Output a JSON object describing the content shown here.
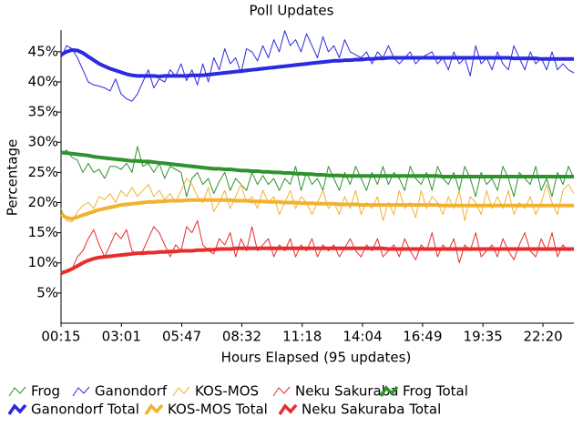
{
  "chart_data": {
    "type": "line",
    "title": "Poll Updates",
    "x_label": "Hours Elapsed (95 updates)",
    "y_label": "Percentage",
    "x": [
      15,
      30,
      45,
      60,
      75,
      90,
      105,
      120,
      135,
      150,
      165,
      180,
      195,
      210,
      225,
      240,
      255,
      270,
      285,
      300,
      315,
      330,
      345,
      360,
      375,
      390,
      405,
      420,
      435,
      450,
      465,
      480,
      495,
      510,
      525,
      540,
      555,
      570,
      585,
      600,
      615,
      630,
      645,
      660,
      675,
      690,
      705,
      720,
      735,
      750,
      765,
      780,
      795,
      810,
      825,
      840,
      855,
      870,
      885,
      900,
      915,
      930,
      945,
      960,
      975,
      990,
      1005,
      1020,
      1035,
      1050,
      1065,
      1080,
      1095,
      1110,
      1125,
      1140,
      1155,
      1170,
      1185,
      1200,
      1215,
      1230,
      1245,
      1260,
      1275,
      1290,
      1305,
      1320,
      1335,
      1350,
      1365,
      1380,
      1395,
      1410,
      1425
    ],
    "xlim": [
      15,
      1425
    ],
    "xticks": [
      {
        "value": 15,
        "label": "00:15"
      },
      {
        "value": 181,
        "label": "03:01"
      },
      {
        "value": 347,
        "label": "05:47"
      },
      {
        "value": 512,
        "label": "08:32"
      },
      {
        "value": 678,
        "label": "11:18"
      },
      {
        "value": 844,
        "label": "14:04"
      },
      {
        "value": 1009,
        "label": "16:49"
      },
      {
        "value": 1175,
        "label": "19:35"
      },
      {
        "value": 1340,
        "label": "22:20"
      }
    ],
    "ylim": [
      0,
      48.6
    ],
    "yticks": [
      {
        "value": 5,
        "label": "5%"
      },
      {
        "value": 10,
        "label": "10%"
      },
      {
        "value": 15,
        "label": "15%"
      },
      {
        "value": 20,
        "label": "20%"
      },
      {
        "value": 25,
        "label": "25%"
      },
      {
        "value": 30,
        "label": "30%"
      },
      {
        "value": 35,
        "label": "35%"
      },
      {
        "value": 40,
        "label": "40%"
      },
      {
        "value": 45,
        "label": "45%"
      }
    ],
    "grid": false,
    "legend": "bottom",
    "series": [
      {
        "name": "Frog",
        "color": "#2e922e",
        "line_width": 1,
        "values": [
          28,
          28.7,
          27.5,
          27,
          25,
          26.5,
          25,
          25.5,
          24,
          26,
          26,
          25.5,
          26.5,
          25,
          29.3,
          26,
          26.5,
          25,
          26.5,
          24,
          26,
          25.5,
          25,
          21,
          24,
          25,
          23,
          24,
          21.5,
          23.5,
          25,
          22,
          24,
          23,
          22,
          25,
          23,
          24.5,
          23,
          24,
          22,
          24,
          23,
          26,
          22,
          25,
          23,
          24,
          22,
          26,
          24,
          22,
          25,
          23,
          26,
          24,
          22,
          25,
          23,
          26,
          23,
          25,
          24,
          22,
          26,
          24,
          23,
          25,
          22,
          26,
          24,
          23,
          25,
          22,
          26,
          24,
          21,
          25,
          23,
          24,
          22,
          26,
          24,
          21,
          25,
          24,
          23,
          26,
          22,
          24,
          21,
          25,
          23,
          26,
          24
        ]
      },
      {
        "name": "Ganondorf",
        "color": "#2a2ae0",
        "line_width": 1,
        "values": [
          44,
          46,
          45.5,
          44,
          42,
          40,
          39.5,
          39.3,
          39,
          38.5,
          40.5,
          38,
          37.2,
          36.8,
          38,
          40,
          42,
          39,
          40.5,
          40,
          42,
          41,
          43,
          40.2,
          42,
          39.5,
          43,
          40,
          44,
          42,
          45.5,
          43,
          44,
          41.5,
          45.5,
          45,
          43.5,
          46,
          44,
          47,
          45,
          48.5,
          46,
          47,
          45,
          48,
          46,
          44,
          47.5,
          45,
          46,
          44,
          47,
          45,
          44.5,
          44,
          45,
          43,
          45,
          44,
          46,
          44,
          43,
          44,
          45,
          43,
          44,
          44.5,
          45,
          43,
          44,
          42,
          45,
          43,
          44,
          41,
          46,
          43,
          44,
          42,
          45,
          43,
          42,
          46,
          44,
          42,
          45,
          43,
          44,
          42,
          45,
          42,
          43,
          42,
          41.5
        ]
      },
      {
        "name": "KOS-MOS",
        "color": "#f2b230",
        "line_width": 1,
        "values": [
          19,
          17,
          16.8,
          18.5,
          19.5,
          20,
          19,
          21,
          20.5,
          21.5,
          20,
          22,
          21,
          22.5,
          21,
          22,
          23,
          21,
          22,
          20.5,
          21.5,
          20,
          22,
          24,
          23,
          21,
          20,
          22.5,
          18.5,
          20,
          22,
          19,
          21,
          23,
          20,
          21,
          19,
          22,
          20,
          21,
          18,
          20,
          22,
          19,
          21,
          20,
          18,
          20,
          22,
          19,
          20,
          18,
          21,
          19,
          22,
          18,
          20,
          19,
          21,
          17,
          20,
          18,
          22,
          19,
          20,
          17.5,
          22,
          19,
          21,
          20,
          18,
          21,
          19,
          22,
          17,
          21,
          20,
          18,
          22,
          19,
          21,
          19,
          22,
          18,
          20,
          19,
          21,
          18,
          20,
          23,
          20,
          18,
          22,
          23,
          21.5
        ]
      },
      {
        "name": "Neku Sakuraba",
        "color": "#e82c2c",
        "line_width": 1,
        "values": [
          8,
          8.5,
          9,
          11,
          12,
          14,
          15.5,
          13,
          11,
          13,
          15,
          14,
          15.5,
          12,
          11.5,
          12,
          14,
          16,
          15,
          13,
          11,
          13,
          12,
          16,
          15,
          17,
          13,
          12,
          11.5,
          14,
          13,
          15,
          11,
          14,
          12,
          16,
          12,
          13,
          14,
          11,
          13,
          12,
          14,
          11,
          13,
          12,
          14,
          11,
          13,
          12,
          13,
          11,
          12.5,
          14,
          12,
          11,
          13,
          12,
          14,
          11,
          12,
          13,
          11,
          14,
          12,
          10.5,
          13,
          12,
          15,
          11,
          13,
          12,
          14,
          10,
          13,
          12,
          15,
          11,
          12,
          13,
          11,
          14,
          12,
          10.5,
          13,
          15,
          12,
          11,
          14,
          12,
          15,
          11,
          13,
          12,
          12.5
        ]
      },
      {
        "name": "Frog Total",
        "color": "#2e922e",
        "line_width": 4,
        "values": [
          28.3,
          28.2,
          28.1,
          28,
          27.9,
          27.8,
          27.6,
          27.5,
          27.4,
          27.3,
          27.2,
          27.1,
          27,
          26.9,
          26.9,
          26.8,
          26.8,
          26.7,
          26.6,
          26.5,
          26.4,
          26.3,
          26.2,
          26.1,
          26,
          25.9,
          25.8,
          25.7,
          25.6,
          25.6,
          25.5,
          25.5,
          25.4,
          25.3,
          25.3,
          25.2,
          25.2,
          25.1,
          25.1,
          25,
          25,
          24.9,
          24.9,
          24.8,
          24.8,
          24.7,
          24.7,
          24.6,
          24.6,
          24.5,
          24.5,
          24.5,
          24.4,
          24.4,
          24.4,
          24.4,
          24.4,
          24.4,
          24.4,
          24.4,
          24.4,
          24.4,
          24.4,
          24.4,
          24.4,
          24.4,
          24.4,
          24.4,
          24.4,
          24.4,
          24.3,
          24.3,
          24.3,
          24.3,
          24.3,
          24.3,
          24.3,
          24.3,
          24.3,
          24.3,
          24.3,
          24.3,
          24.3,
          24.3,
          24.3,
          24.3,
          24.3,
          24.3,
          24.3,
          24.3,
          24.3,
          24.3,
          24.3,
          24.3,
          24.3
        ]
      },
      {
        "name": "Ganondorf Total",
        "color": "#2a2ae0",
        "line_width": 4,
        "values": [
          44.5,
          45,
          45.3,
          45.2,
          44.8,
          44.2,
          43.6,
          43,
          42.6,
          42.2,
          41.9,
          41.6,
          41.3,
          41.1,
          41,
          41,
          41,
          41,
          40.9,
          41,
          41,
          41,
          41,
          41,
          41.1,
          41.1,
          41.1,
          41.2,
          41.3,
          41.4,
          41.5,
          41.6,
          41.7,
          41.8,
          41.9,
          42,
          42.1,
          42.2,
          42.3,
          42.4,
          42.5,
          42.6,
          42.7,
          42.8,
          42.9,
          43,
          43.1,
          43.2,
          43.3,
          43.4,
          43.5,
          43.5,
          43.6,
          43.6,
          43.7,
          43.7,
          43.8,
          43.8,
          43.9,
          43.9,
          44,
          44,
          44,
          44,
          44,
          44,
          44,
          44,
          44,
          44,
          44,
          44,
          44,
          44,
          44,
          44,
          44,
          44,
          44,
          44,
          44,
          44,
          44,
          43.9,
          43.9,
          43.9,
          43.9,
          43.9,
          43.8,
          43.8,
          43.8,
          43.8,
          43.8,
          43.8,
          43.8
        ]
      },
      {
        "name": "KOS-MOS Total",
        "color": "#f2b230",
        "line_width": 4,
        "values": [
          18,
          17.5,
          17.3,
          17.6,
          17.9,
          18.2,
          18.5,
          18.8,
          19,
          19.2,
          19.4,
          19.6,
          19.7,
          19.8,
          19.9,
          20,
          20.1,
          20.1,
          20.2,
          20.2,
          20.3,
          20.3,
          20.3,
          20.4,
          20.4,
          20.4,
          20.4,
          20.4,
          20.4,
          20.4,
          20.4,
          20.4,
          20.3,
          20.3,
          20.3,
          20.2,
          20.2,
          20.2,
          20.1,
          20.1,
          20.1,
          20,
          20,
          20,
          19.9,
          19.9,
          19.9,
          19.8,
          19.8,
          19.8,
          19.8,
          19.7,
          19.7,
          19.7,
          19.7,
          19.6,
          19.6,
          19.6,
          19.6,
          19.6,
          19.6,
          19.6,
          19.6,
          19.6,
          19.6,
          19.6,
          19.6,
          19.6,
          19.6,
          19.6,
          19.5,
          19.5,
          19.5,
          19.5,
          19.5,
          19.5,
          19.5,
          19.5,
          19.5,
          19.5,
          19.5,
          19.5,
          19.5,
          19.5,
          19.5,
          19.5,
          19.5,
          19.5,
          19.5,
          19.5,
          19.5,
          19.5,
          19.5,
          19.5,
          19.5
        ]
      },
      {
        "name": "Neku Sakuraba Total",
        "color": "#e82c2c",
        "line_width": 4,
        "values": [
          8.3,
          8.6,
          9,
          9.5,
          10,
          10.4,
          10.7,
          10.9,
          11,
          11.1,
          11.2,
          11.3,
          11.4,
          11.5,
          11.6,
          11.6,
          11.7,
          11.7,
          11.8,
          11.8,
          11.9,
          11.9,
          12,
          12,
          12,
          12.1,
          12.1,
          12.2,
          12.2,
          12.3,
          12.3,
          12.3,
          12.4,
          12.4,
          12.4,
          12.4,
          12.4,
          12.4,
          12.4,
          12.4,
          12.4,
          12.4,
          12.4,
          12.4,
          12.4,
          12.4,
          12.4,
          12.4,
          12.4,
          12.4,
          12.4,
          12.4,
          12.4,
          12.4,
          12.4,
          12.4,
          12.4,
          12.4,
          12.4,
          12.4,
          12.3,
          12.3,
          12.3,
          12.3,
          12.3,
          12.3,
          12.3,
          12.3,
          12.3,
          12.3,
          12.3,
          12.3,
          12.3,
          12.3,
          12.3,
          12.3,
          12.3,
          12.3,
          12.3,
          12.3,
          12.3,
          12.3,
          12.3,
          12.3,
          12.3,
          12.3,
          12.3,
          12.3,
          12.3,
          12.3,
          12.3,
          12.3,
          12.3,
          12.3,
          12.3
        ]
      }
    ]
  }
}
